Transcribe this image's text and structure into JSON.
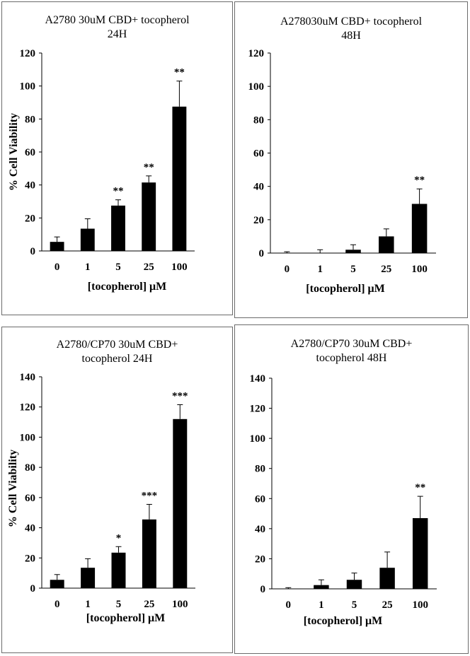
{
  "chart_data": [
    {
      "type": "bar",
      "title": "A2780 30uM CBD+ tocopherol\n24H",
      "xlabel": "[tocopherol] μM",
      "ylabel": "% Cell Viability",
      "categories": [
        "0",
        "1",
        "5",
        "25",
        "100"
      ],
      "values": [
        5.5,
        13.5,
        27.5,
        41.5,
        87.5
      ],
      "errors": [
        3,
        6,
        3.5,
        4,
        15.5
      ],
      "annotations": [
        "",
        "",
        "**",
        "**",
        "**"
      ],
      "ylim": [
        0,
        120
      ],
      "yticks": [
        0,
        20,
        40,
        60,
        80,
        100,
        120
      ],
      "bar_color": "#000000"
    },
    {
      "type": "bar",
      "title": "A278030uM CBD+ tocopherol\n48H",
      "xlabel": "[tocopherol] μM",
      "ylabel": "",
      "categories": [
        "0",
        "1",
        "5",
        "25",
        "100"
      ],
      "values": [
        0,
        0,
        2,
        10,
        29.5
      ],
      "errors": [
        0.8,
        2,
        3,
        4.5,
        9
      ],
      "annotations": [
        "",
        "",
        "",
        "",
        "**"
      ],
      "ylim": [
        0,
        120
      ],
      "yticks": [
        0,
        20,
        40,
        60,
        80,
        100,
        120
      ],
      "bar_color": "#000000"
    },
    {
      "type": "bar",
      "title": "A2780/CP70 30uM CBD+\ntocopherol 24H",
      "xlabel": "[tocopherol] μM",
      "ylabel": "% Cell Viability",
      "categories": [
        "0",
        "1",
        "5",
        "25",
        "100"
      ],
      "values": [
        5.5,
        13.5,
        23.5,
        45.5,
        112
      ],
      "errors": [
        3.5,
        6,
        4,
        10,
        9.5
      ],
      "annotations": [
        "",
        "",
        "*",
        "***",
        "***"
      ],
      "ylim": [
        0,
        140
      ],
      "yticks": [
        0,
        20,
        40,
        60,
        80,
        100,
        120,
        140
      ],
      "bar_color": "#000000"
    },
    {
      "type": "bar",
      "title": "A2780/CP70 30uM CBD+\ntocopherol 48H",
      "xlabel": "[tocopherol] μM",
      "ylabel": "",
      "categories": [
        "0",
        "1",
        "5",
        "25",
        "100"
      ],
      "values": [
        0,
        2.5,
        6,
        14,
        47
      ],
      "errors": [
        0.8,
        3.5,
        4.5,
        10.5,
        14.5
      ],
      "annotations": [
        "",
        "",
        "",
        "",
        "**"
      ],
      "ylim": [
        0,
        140
      ],
      "yticks": [
        0,
        20,
        40,
        60,
        80,
        100,
        120,
        140
      ],
      "bar_color": "#000000"
    }
  ]
}
